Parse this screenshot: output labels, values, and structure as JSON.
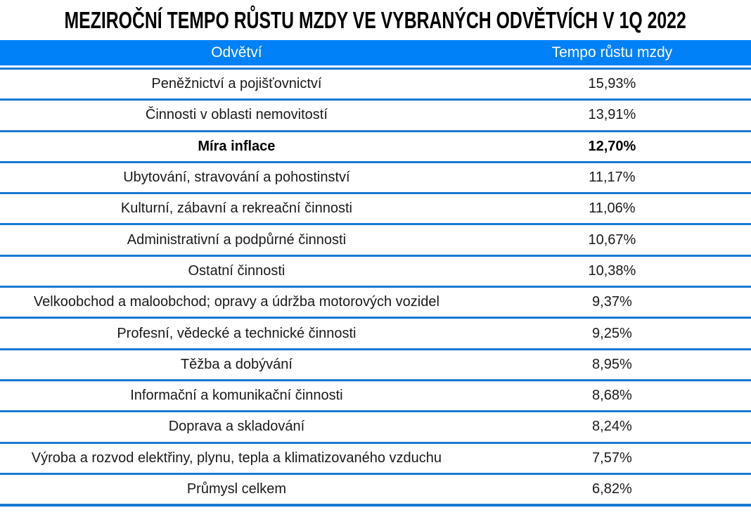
{
  "title": "MEZIROČNÍ TEMPO RŮSTU MZDY VE VYBRANÝCH ODVĚTVÍCH V 1Q 2022",
  "colors": {
    "header_bg": "#0181F8",
    "row_divider": "#1879D2",
    "header_text": "#FFFFFF",
    "body_text": "#1A1A1A",
    "title_text": "#000000"
  },
  "chart_data": {
    "type": "table",
    "title": "MEZIROČNÍ TEMPO RŮSTU MZDY VE VYBRANÝCH ODVĚTVÍCH V 1Q 2022",
    "columns": [
      "Odvětví",
      "Tempo růstu mzdy"
    ],
    "rows": [
      {
        "label": "Peněžnictví a pojišťovnictví",
        "value": "15,93%",
        "value_num": 15.93,
        "bold": false
      },
      {
        "label": "Činnosti v oblasti nemovitostí",
        "value": "13,91%",
        "value_num": 13.91,
        "bold": false
      },
      {
        "label": "Míra inflace",
        "value": "12,70%",
        "value_num": 12.7,
        "bold": true
      },
      {
        "label": "Ubytování, stravování a pohostinství",
        "value": "11,17%",
        "value_num": 11.17,
        "bold": false
      },
      {
        "label": "Kulturní, zábavní a rekreační činnosti",
        "value": "11,06%",
        "value_num": 11.06,
        "bold": false
      },
      {
        "label": "Administrativní a podpůrné činnosti",
        "value": "10,67%",
        "value_num": 10.67,
        "bold": false
      },
      {
        "label": "Ostatní činnosti",
        "value": "10,38%",
        "value_num": 10.38,
        "bold": false
      },
      {
        "label": "Velkoobchod a maloobchod; opravy a údržba motorových vozidel",
        "value": "9,37%",
        "value_num": 9.37,
        "bold": false
      },
      {
        "label": "Profesní, vědecké a technické činnosti",
        "value": "9,25%",
        "value_num": 9.25,
        "bold": false
      },
      {
        "label": "Těžba a dobývání",
        "value": "8,95%",
        "value_num": 8.95,
        "bold": false
      },
      {
        "label": "Informační a komunikační činnosti",
        "value": "8,68%",
        "value_num": 8.68,
        "bold": false
      },
      {
        "label": "Doprava a skladování",
        "value": "8,24%",
        "value_num": 8.24,
        "bold": false
      },
      {
        "label": "Výroba a rozvod elektřiny, plynu, tepla a klimatizovaného vzduchu",
        "value": "7,57%",
        "value_num": 7.57,
        "bold": false
      },
      {
        "label": "Průmysl celkem",
        "value": "6,82%",
        "value_num": 6.82,
        "bold": false
      }
    ]
  }
}
